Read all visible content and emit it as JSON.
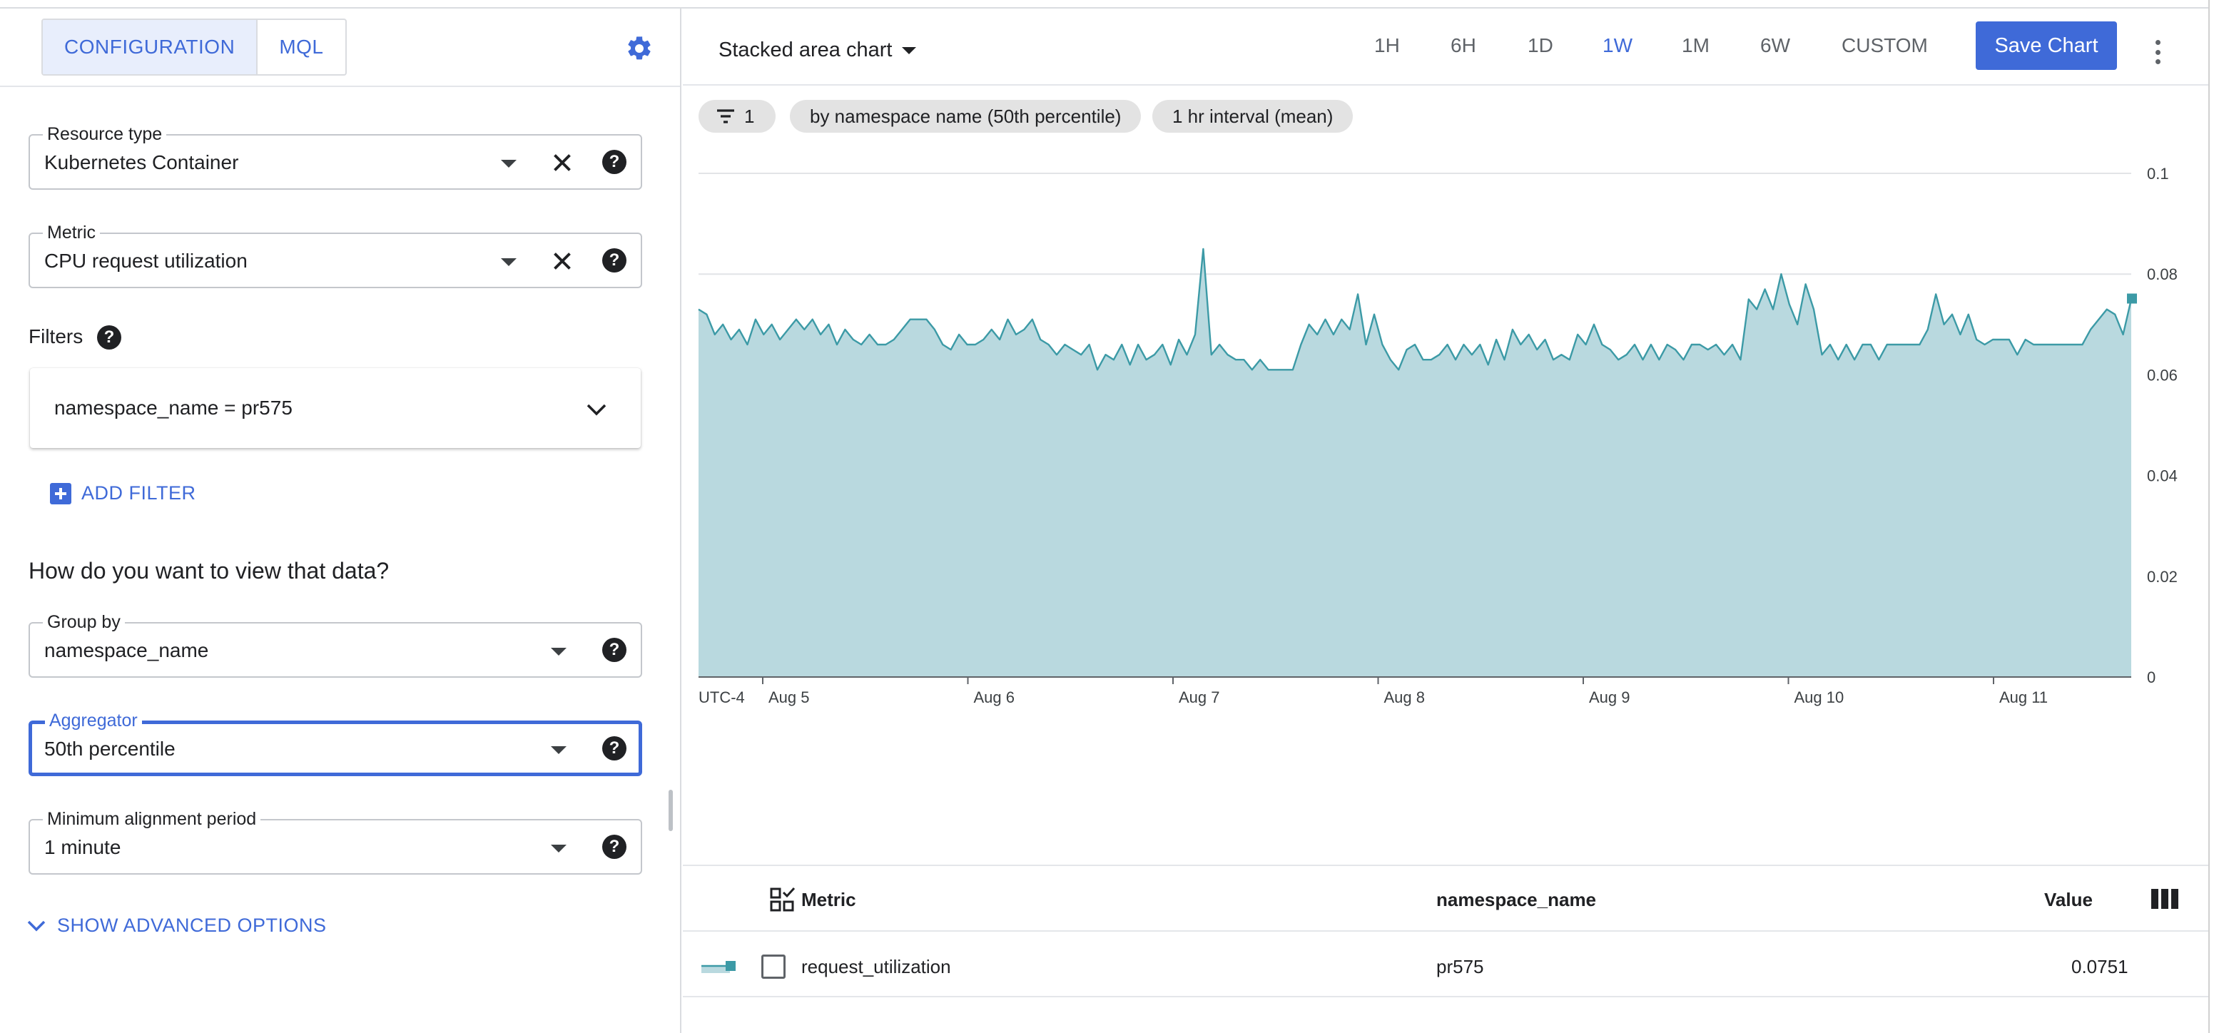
{
  "config_panel": {
    "tabs": [
      {
        "label": "CONFIGURATION",
        "active": true
      },
      {
        "label": "MQL",
        "active": false
      }
    ],
    "resource_type": {
      "label": "Resource type",
      "value": "Kubernetes Container"
    },
    "metric": {
      "label": "Metric",
      "value": "CPU request utilization"
    },
    "filters": {
      "title": "Filters",
      "items": [
        {
          "text": "namespace_name = pr575"
        }
      ],
      "add_label": "ADD FILTER"
    },
    "view_question": "How do you want to view that data?",
    "group_by": {
      "label": "Group by",
      "value": "namespace_name"
    },
    "aggregator": {
      "label": "Aggregator",
      "value": "50th percentile"
    },
    "min_alignment": {
      "label": "Minimum alignment period",
      "value": "1 minute"
    },
    "advanced_label": "SHOW ADVANCED OPTIONS"
  },
  "toolbar": {
    "chart_type": "Stacked area chart",
    "ranges": [
      "1H",
      "6H",
      "1D",
      "1W",
      "1M",
      "6W",
      "CUSTOM"
    ],
    "active_range": "1W",
    "save_label": "Save Chart"
  },
  "chips": {
    "filter_count": "1",
    "group_chip": "by namespace name (50th percentile)",
    "interval_chip": "1 hr interval (mean)"
  },
  "chart_data": {
    "type": "area",
    "timezone_label": "UTC-4",
    "x_tick_labels": [
      "Aug 5",
      "Aug 6",
      "Aug 7",
      "Aug 8",
      "Aug 9",
      "Aug 10",
      "Aug 11"
    ],
    "y_tick_labels": [
      "0",
      "0.02",
      "0.04",
      "0.06",
      "0.08",
      "0.1"
    ],
    "ylim": [
      0,
      0.1
    ],
    "grid": true,
    "fill_color": "#b9d9df",
    "line_color": "#3c9aa6",
    "series": [
      {
        "values": [
          0.073,
          0.072,
          0.068,
          0.07,
          0.067,
          0.069,
          0.066,
          0.071,
          0.068,
          0.07,
          0.067,
          0.069,
          0.071,
          0.069,
          0.071,
          0.068,
          0.07,
          0.066,
          0.069,
          0.067,
          0.066,
          0.068,
          0.066,
          0.066,
          0.067,
          0.069,
          0.071,
          0.071,
          0.071,
          0.069,
          0.066,
          0.065,
          0.068,
          0.066,
          0.066,
          0.067,
          0.069,
          0.067,
          0.071,
          0.068,
          0.069,
          0.071,
          0.067,
          0.066,
          0.064,
          0.066,
          0.065,
          0.064,
          0.066,
          0.061,
          0.064,
          0.063,
          0.066,
          0.062,
          0.066,
          0.063,
          0.064,
          0.066,
          0.062,
          0.067,
          0.064,
          0.068,
          0.085,
          0.064,
          0.066,
          0.064,
          0.063,
          0.063,
          0.061,
          0.063,
          0.061,
          0.061,
          0.061,
          0.061,
          0.066,
          0.07,
          0.068,
          0.071,
          0.068,
          0.071,
          0.069,
          0.076,
          0.066,
          0.072,
          0.066,
          0.063,
          0.061,
          0.065,
          0.066,
          0.063,
          0.063,
          0.064,
          0.066,
          0.063,
          0.066,
          0.064,
          0.066,
          0.062,
          0.067,
          0.063,
          0.069,
          0.066,
          0.068,
          0.065,
          0.067,
          0.063,
          0.064,
          0.063,
          0.068,
          0.066,
          0.07,
          0.066,
          0.065,
          0.063,
          0.064,
          0.066,
          0.063,
          0.066,
          0.063,
          0.066,
          0.065,
          0.063,
          0.066,
          0.066,
          0.065,
          0.066,
          0.064,
          0.066,
          0.063,
          0.075,
          0.073,
          0.077,
          0.073,
          0.08,
          0.074,
          0.07,
          0.078,
          0.073,
          0.064,
          0.066,
          0.063,
          0.066,
          0.063,
          0.066,
          0.066,
          0.063,
          0.066,
          0.066,
          0.066,
          0.066,
          0.066,
          0.069,
          0.076,
          0.07,
          0.072,
          0.068,
          0.072,
          0.067,
          0.066,
          0.067,
          0.067,
          0.067,
          0.064,
          0.067,
          0.066,
          0.066,
          0.066,
          0.066,
          0.066,
          0.066,
          0.066,
          0.069,
          0.071,
          0.073,
          0.072,
          0.068,
          0.075
        ]
      }
    ]
  },
  "legend": {
    "headers": {
      "metric": "Metric",
      "namespace": "namespace_name",
      "value": "Value"
    },
    "rows": [
      {
        "metric": "request_utilization",
        "namespace": "pr575",
        "value": "0.0751"
      }
    ]
  }
}
